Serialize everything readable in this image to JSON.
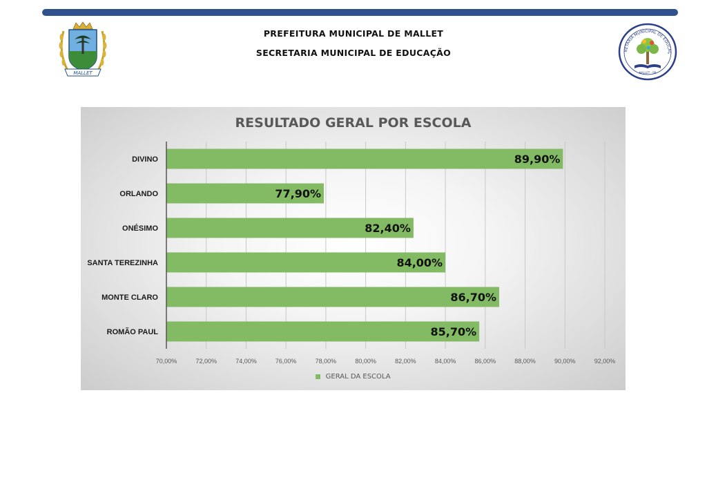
{
  "header": {
    "line1": "PREFEITURA MUNICIPAL DE MALLET",
    "line2": "SECRETARIA MUNICIPAL DE EDUCAÇÃO",
    "crest_text": "MALLET",
    "seal_text": "SECRETARIA MUNICIPAL DE EDUCAÇÃO",
    "seal_bottom_text": "MALLET - PR"
  },
  "colors": {
    "bar": "#82bb63",
    "top_bar": "#2f528f",
    "axis_text": "#595959",
    "label_text": "#1a1a1a"
  },
  "chart_data": {
    "type": "bar",
    "orientation": "horizontal",
    "title": "RESULTADO GERAL POR ESCOLA",
    "categories": [
      "DIVINO",
      "ORLANDO",
      "ONÉSIMO",
      "SANTA TEREZINHA",
      "MONTE CLARO",
      "ROMÃO PAUL"
    ],
    "series": [
      {
        "name": "GERAL DA ESCOLA",
        "values": [
          89.9,
          77.9,
          82.4,
          84.0,
          86.7,
          85.7
        ],
        "labels": [
          "89,90%",
          "77,90%",
          "82,40%",
          "84,00%",
          "86,70%",
          "85,70%"
        ]
      }
    ],
    "xlim": [
      70,
      92
    ],
    "xticks": [
      70,
      72,
      74,
      76,
      78,
      80,
      82,
      84,
      86,
      88,
      90,
      92
    ],
    "xtick_labels": [
      "70,00%",
      "72,00%",
      "74,00%",
      "76,00%",
      "78,00%",
      "80,00%",
      "82,00%",
      "84,00%",
      "86,00%",
      "88,00%",
      "90,00%",
      "92,00%"
    ],
    "grid": true,
    "legend": "bottom"
  }
}
